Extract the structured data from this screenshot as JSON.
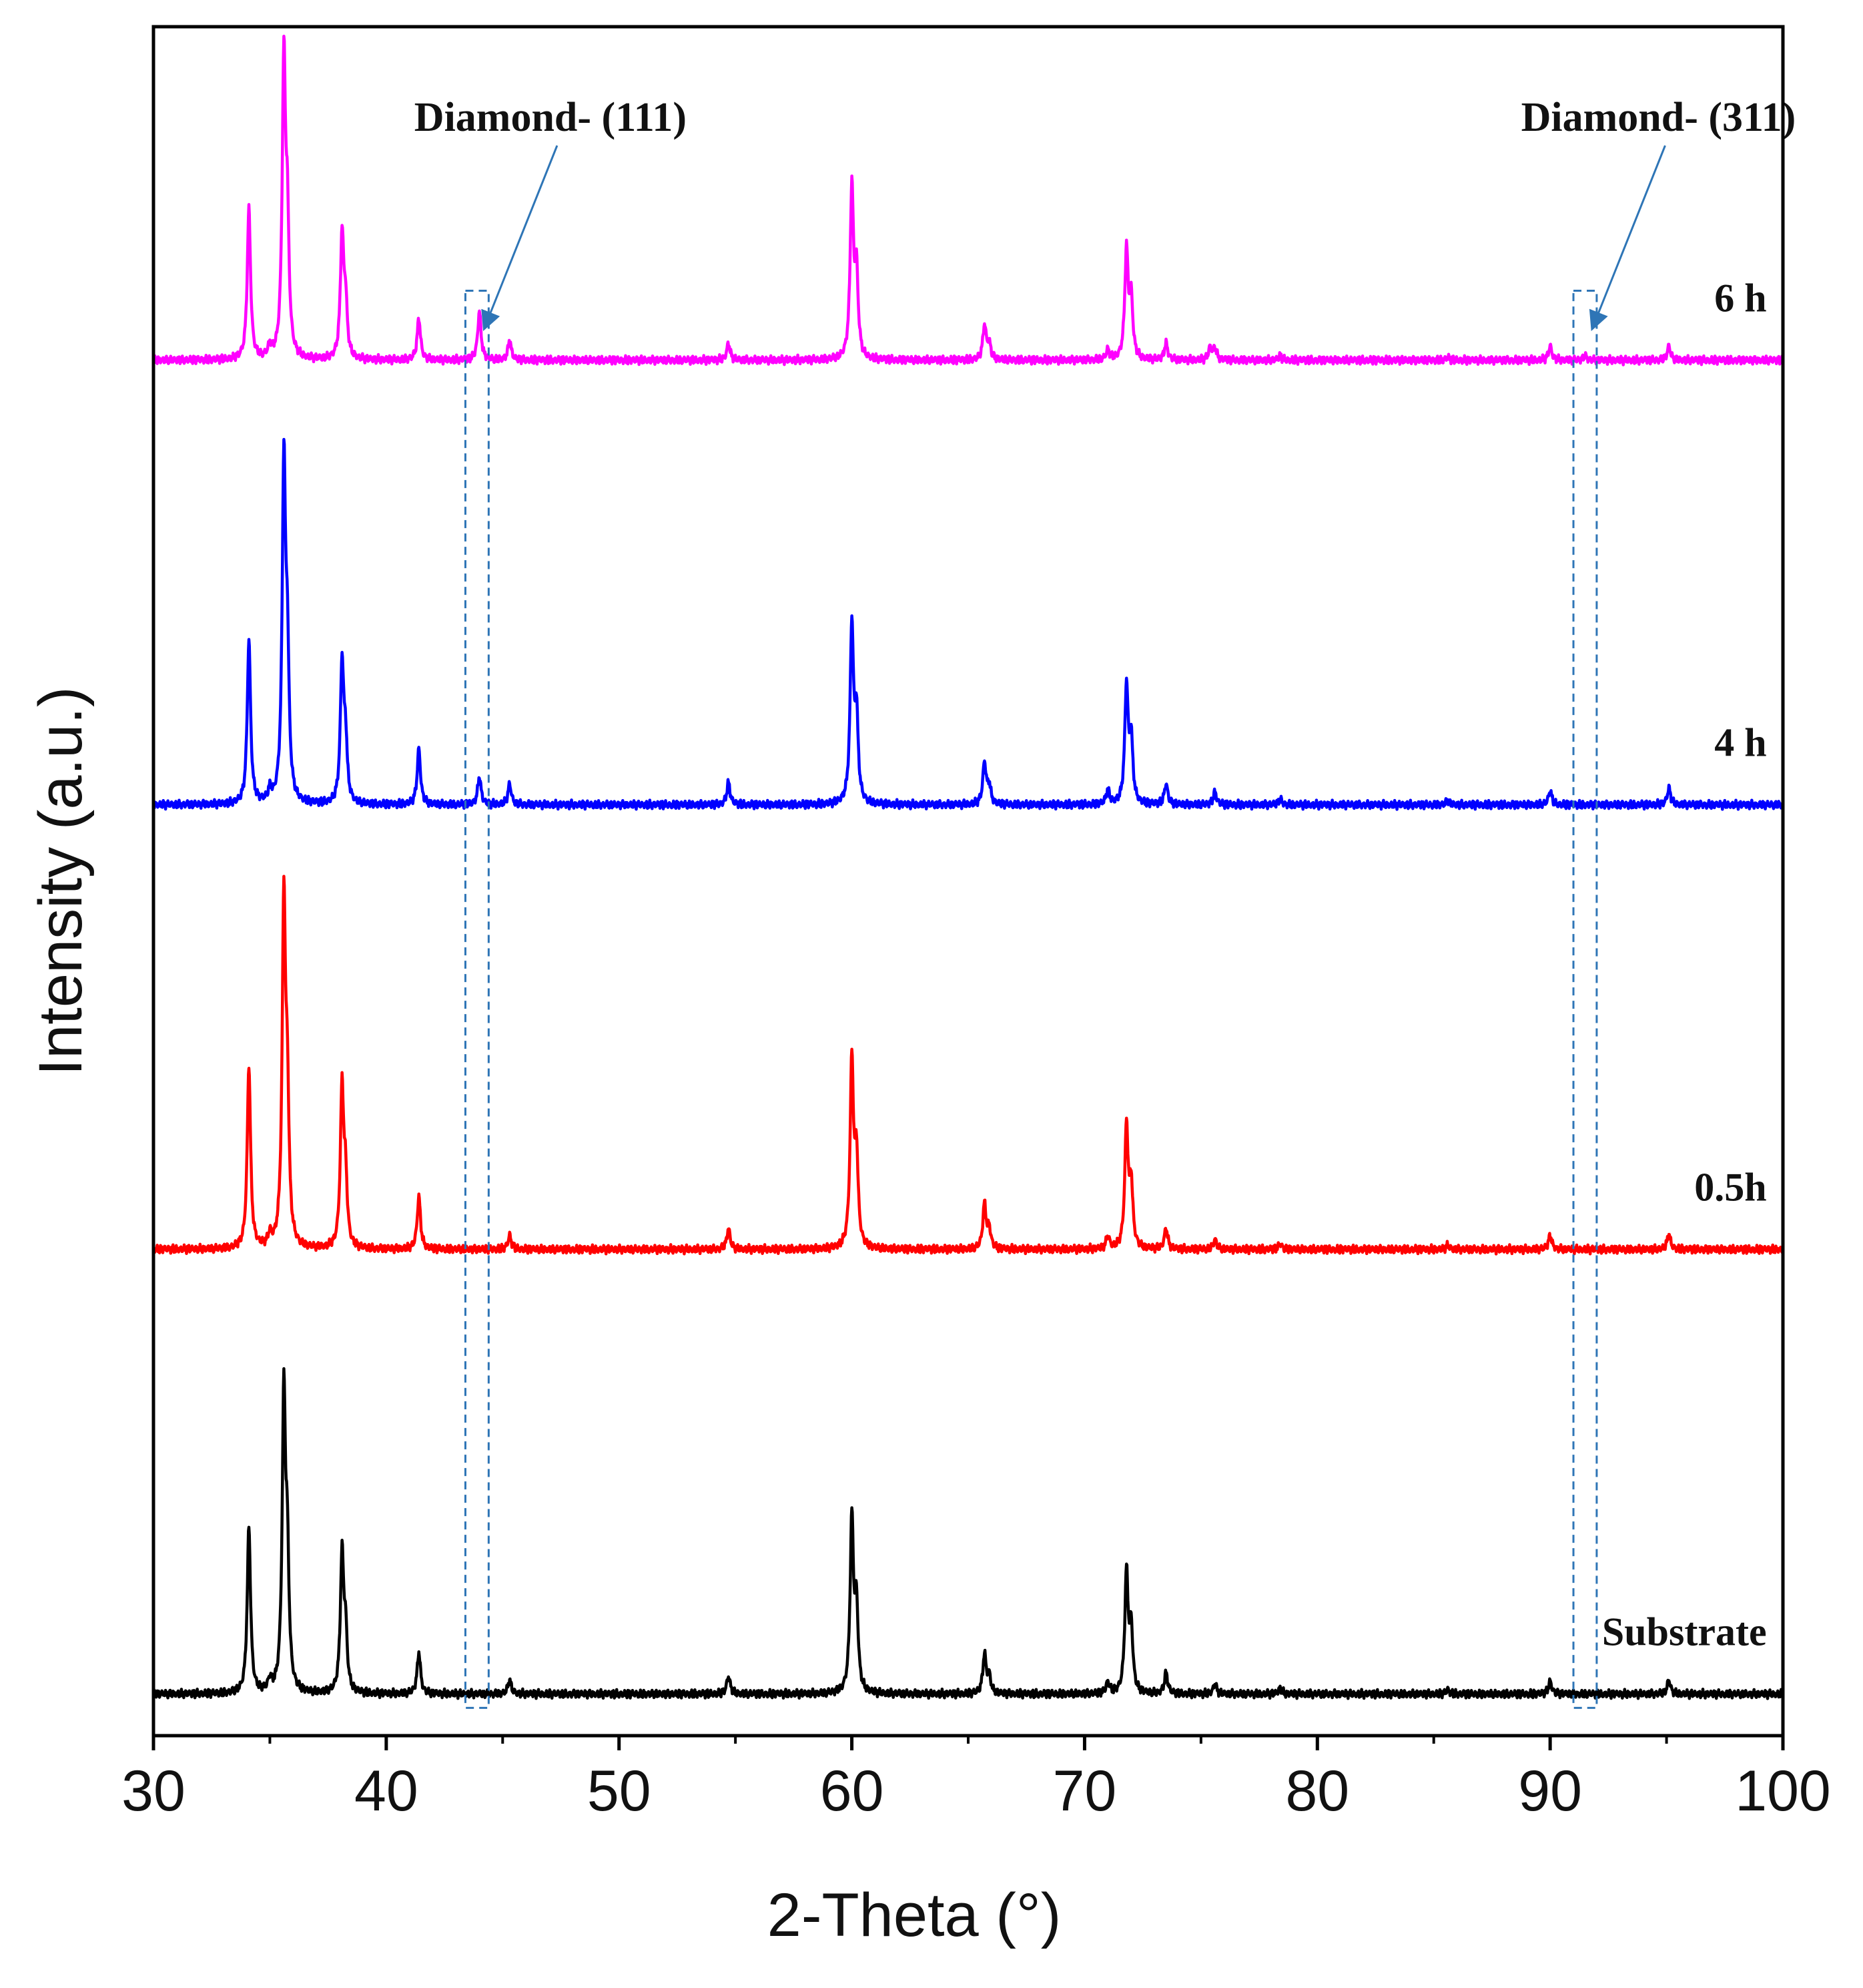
{
  "chart_data": {
    "type": "line",
    "title": "",
    "xlabel": "2-Theta (°)",
    "ylabel": "Intensity (a.u.)",
    "xlim": [
      30,
      100
    ],
    "xticks": [
      30,
      40,
      50,
      60,
      70,
      80,
      90,
      100
    ],
    "xtick_labels": [
      "30",
      "40",
      "50",
      "60",
      "70",
      "80",
      "90",
      "100"
    ],
    "grid": false,
    "legend": "none (series labelled inline at right)",
    "series": [
      {
        "name": "Substrate",
        "label": "Substrate",
        "color": "#000000",
        "baseline": 0,
        "peaks": [
          {
            "x": 34.1,
            "y": 120
          },
          {
            "x": 35.0,
            "y": 8
          },
          {
            "x": 35.6,
            "y": 210
          },
          {
            "x": 35.75,
            "y": 90
          },
          {
            "x": 38.1,
            "y": 98
          },
          {
            "x": 38.25,
            "y": 40
          },
          {
            "x": 41.4,
            "y": 30
          },
          {
            "x": 45.3,
            "y": 10
          },
          {
            "x": 54.7,
            "y": 13
          },
          {
            "x": 60.0,
            "y": 125
          },
          {
            "x": 60.2,
            "y": 60
          },
          {
            "x": 65.7,
            "y": 28
          },
          {
            "x": 65.9,
            "y": 12
          },
          {
            "x": 71.0,
            "y": 8
          },
          {
            "x": 71.8,
            "y": 86
          },
          {
            "x": 72.0,
            "y": 45
          },
          {
            "x": 73.5,
            "y": 15
          },
          {
            "x": 75.6,
            "y": 7
          },
          {
            "x": 78.4,
            "y": 4
          },
          {
            "x": 85.6,
            "y": 3
          },
          {
            "x": 90.0,
            "y": 9
          },
          {
            "x": 95.1,
            "y": 10
          }
        ]
      },
      {
        "name": "0.5h",
        "label": "0.5h",
        "color": "#ff0000",
        "baseline": 320,
        "peaks": [
          {
            "x": 34.1,
            "y": 132
          },
          {
            "x": 35.0,
            "y": 8
          },
          {
            "x": 35.6,
            "y": 245
          },
          {
            "x": 35.75,
            "y": 100
          },
          {
            "x": 38.1,
            "y": 114
          },
          {
            "x": 38.25,
            "y": 45
          },
          {
            "x": 41.4,
            "y": 38
          },
          {
            "x": 45.3,
            "y": 10
          },
          {
            "x": 54.7,
            "y": 15
          },
          {
            "x": 60.0,
            "y": 135
          },
          {
            "x": 60.2,
            "y": 65
          },
          {
            "x": 65.7,
            "y": 32
          },
          {
            "x": 65.9,
            "y": 14
          },
          {
            "x": 71.0,
            "y": 9
          },
          {
            "x": 71.8,
            "y": 88
          },
          {
            "x": 72.0,
            "y": 45
          },
          {
            "x": 73.5,
            "y": 15
          },
          {
            "x": 75.6,
            "y": 7
          },
          {
            "x": 78.4,
            "y": 4
          },
          {
            "x": 85.6,
            "y": 3
          },
          {
            "x": 90.0,
            "y": 10
          },
          {
            "x": 95.1,
            "y": 11
          }
        ]
      },
      {
        "name": "4 h",
        "label": "4 h",
        "color": "#0000ff",
        "baseline": 640,
        "peaks": [
          {
            "x": 34.1,
            "y": 118
          },
          {
            "x": 35.0,
            "y": 8
          },
          {
            "x": 35.6,
            "y": 240
          },
          {
            "x": 35.75,
            "y": 100
          },
          {
            "x": 38.1,
            "y": 100
          },
          {
            "x": 38.25,
            "y": 42
          },
          {
            "x": 41.4,
            "y": 40
          },
          {
            "x": 44.0,
            "y": 20
          },
          {
            "x": 45.3,
            "y": 15
          },
          {
            "x": 54.7,
            "y": 16
          },
          {
            "x": 60.0,
            "y": 128
          },
          {
            "x": 60.2,
            "y": 62
          },
          {
            "x": 65.7,
            "y": 30
          },
          {
            "x": 65.9,
            "y": 13
          },
          {
            "x": 71.0,
            "y": 10
          },
          {
            "x": 71.8,
            "y": 85
          },
          {
            "x": 72.0,
            "y": 45
          },
          {
            "x": 73.5,
            "y": 15
          },
          {
            "x": 75.6,
            "y": 9
          },
          {
            "x": 78.4,
            "y": 4
          },
          {
            "x": 85.6,
            "y": 3
          },
          {
            "x": 90.0,
            "y": 10
          },
          {
            "x": 95.1,
            "y": 12
          }
        ]
      },
      {
        "name": "6 h",
        "label": "6 h",
        "color": "#ff00ff",
        "baseline": 960,
        "peaks": [
          {
            "x": 34.1,
            "y": 108
          },
          {
            "x": 35.0,
            "y": 8
          },
          {
            "x": 35.6,
            "y": 210
          },
          {
            "x": 35.75,
            "y": 90
          },
          {
            "x": 38.1,
            "y": 88
          },
          {
            "x": 38.25,
            "y": 38
          },
          {
            "x": 41.4,
            "y": 30
          },
          {
            "x": 44.0,
            "y": 35
          },
          {
            "x": 45.3,
            "y": 14
          },
          {
            "x": 54.7,
            "y": 12
          },
          {
            "x": 60.0,
            "y": 122
          },
          {
            "x": 60.2,
            "y": 60
          },
          {
            "x": 65.7,
            "y": 25
          },
          {
            "x": 65.9,
            "y": 11
          },
          {
            "x": 71.0,
            "y": 7
          },
          {
            "x": 71.8,
            "y": 78
          },
          {
            "x": 72.0,
            "y": 42
          },
          {
            "x": 73.5,
            "y": 12
          },
          {
            "x": 75.4,
            "y": 9
          },
          {
            "x": 75.6,
            "y": 8
          },
          {
            "x": 78.4,
            "y": 3
          },
          {
            "x": 85.6,
            "y": 2
          },
          {
            "x": 90.0,
            "y": 10
          },
          {
            "x": 91.5,
            "y": 3
          },
          {
            "x": 95.1,
            "y": 10
          }
        ]
      }
    ],
    "ylim": [
      -30,
      1200
    ],
    "annotations": [
      {
        "text": "Diamond- (111)",
        "x_range": [
          43.4,
          44.4
        ]
      },
      {
        "text": "Diamond- (311)",
        "x_range": [
          91.0,
          92.0
        ]
      }
    ]
  }
}
